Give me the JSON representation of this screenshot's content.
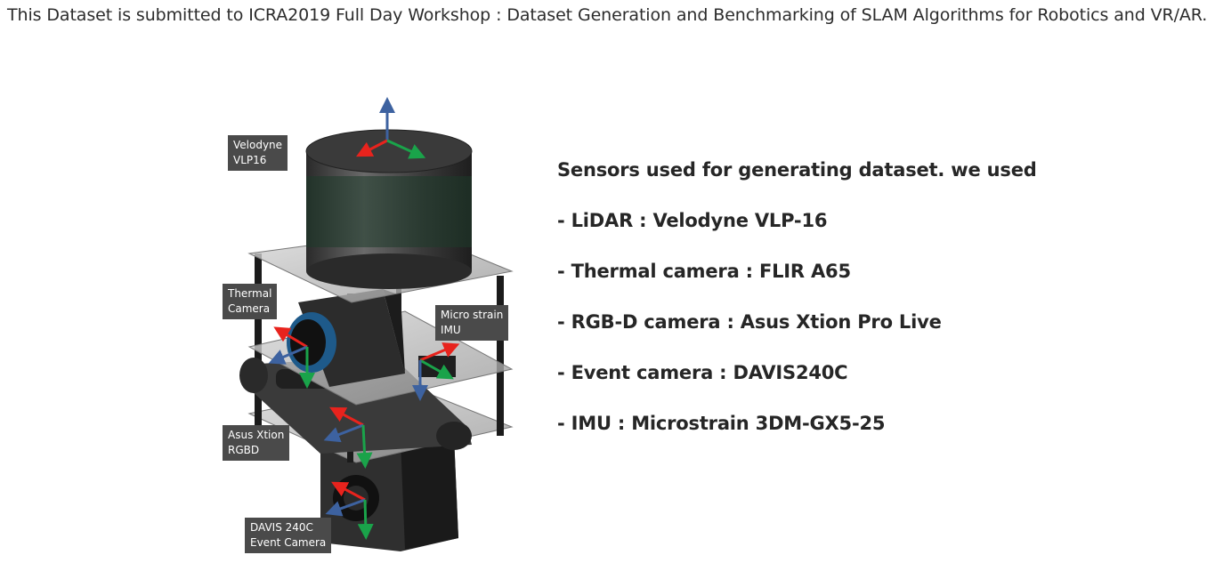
{
  "intro_text": "This Dataset is submitted to ICRA2019 Full Day Workshop : Dataset Generation and Benchmarking of SLAM Algorithms for Robotics and VR/AR.",
  "figure": {
    "labels": {
      "velodyne": [
        "Velodyne",
        "VLP16"
      ],
      "thermal": [
        "Thermal",
        "Camera"
      ],
      "imu": [
        "Micro strain",
        "IMU"
      ],
      "asus": [
        "Asus Xtion",
        "RGBD"
      ],
      "davis": [
        "DAVIS 240C",
        "Event Camera"
      ]
    },
    "axis_colors": {
      "x": "#e8231d",
      "y": "#1aa34a",
      "z": "#3d62a0"
    }
  },
  "sensors": {
    "heading": "Sensors used for generating dataset. we used",
    "items": [
      "- LiDAR : Velodyne VLP-16",
      "- Thermal camera : FLIR A65",
      "- RGB-D camera : Asus Xtion Pro Live",
      "- Event camera : DAVIS240C",
      "- IMU : Microstrain 3DM-GX5-25"
    ]
  }
}
